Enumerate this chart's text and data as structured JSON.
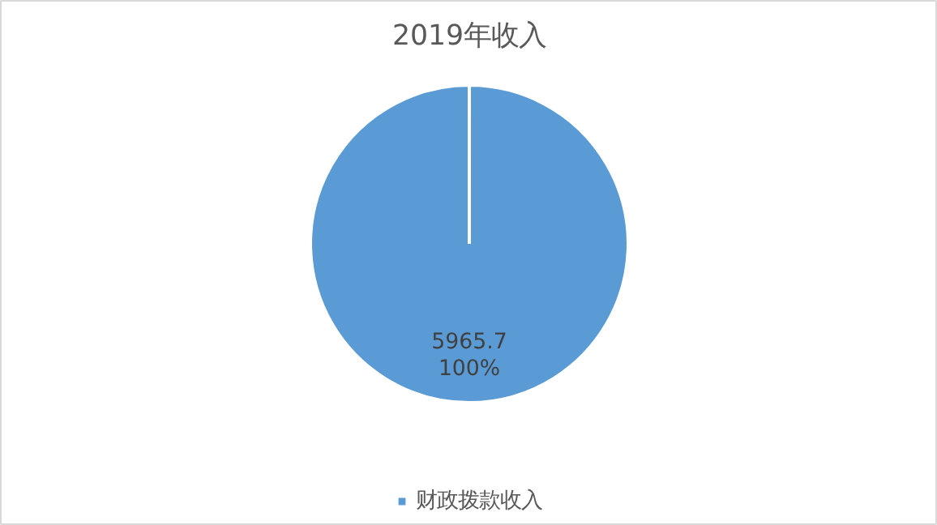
{
  "chart_data": {
    "type": "pie",
    "title": "2019年收入",
    "categories": [
      "财政拨款收入"
    ],
    "values": [
      5965.7
    ],
    "colors": [
      "#5b9bd5"
    ],
    "data_labels": true,
    "annotations": [
      "100%"
    ],
    "legend": "bottom"
  }
}
